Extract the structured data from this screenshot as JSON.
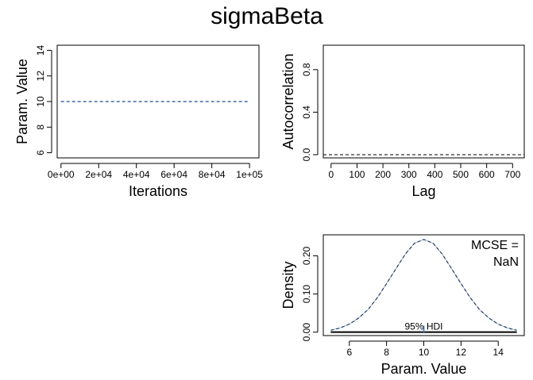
{
  "title": "sigmaBeta",
  "chart_data": [
    {
      "type": "line",
      "panel": "trace",
      "xlabel": "Iterations",
      "ylabel": "Param. Value",
      "xlim": [
        -2000,
        105000
      ],
      "ylim": [
        5.6,
        14.4
      ],
      "xticks": [
        0,
        20000,
        40000,
        60000,
        80000,
        100000
      ],
      "xtick_labels": [
        "0e+00",
        "2e+04",
        "4e+04",
        "6e+04",
        "8e+04",
        "1e+05"
      ],
      "yticks": [
        6,
        8,
        10,
        12,
        14
      ],
      "ytick_labels": [
        "6",
        "8",
        "10",
        "12",
        "14"
      ],
      "series": [
        {
          "x": [
            0,
            100000
          ],
          "y": [
            10,
            10
          ],
          "color": "#1f4e99",
          "style": "dashed"
        }
      ]
    },
    {
      "type": "line",
      "panel": "autocorrelation",
      "xlabel": "Lag",
      "ylabel": "Autocorrelation",
      "xlim": [
        -30,
        745
      ],
      "ylim": [
        -0.03,
        1.03
      ],
      "xticks": [
        0,
        100,
        200,
        300,
        400,
        500,
        600,
        700
      ],
      "xtick_labels": [
        "0",
        "100",
        "200",
        "300",
        "400",
        "500",
        "600",
        "700"
      ],
      "yticks": [
        0.0,
        0.4,
        0.8
      ],
      "ytick_labels": [
        "0.0",
        "0.4",
        "0.8"
      ],
      "reference_line": {
        "y": 0,
        "color": "#000000",
        "style": "dashed"
      },
      "series": []
    },
    {
      "type": "area",
      "panel": "density",
      "xlabel": "Param. Value",
      "ylabel": "Density",
      "xlim": [
        4.6,
        15.4
      ],
      "ylim": [
        -0.009,
        0.255
      ],
      "xticks": [
        6,
        8,
        10,
        12,
        14
      ],
      "xtick_labels": [
        "6",
        "8",
        "10",
        "12",
        "14"
      ],
      "yticks": [
        0.0,
        0.1,
        0.2
      ],
      "ytick_labels": [
        "0.00",
        "0.10",
        "0.20"
      ],
      "series": [
        {
          "x": [
            5,
            5.5,
            6,
            6.5,
            7,
            7.5,
            8,
            8.5,
            9,
            9.5,
            10,
            10.5,
            11,
            11.5,
            12,
            12.5,
            13,
            13.5,
            14,
            14.5,
            15
          ],
          "y": [
            0.005,
            0.011,
            0.021,
            0.037,
            0.059,
            0.09,
            0.127,
            0.166,
            0.204,
            0.233,
            0.243,
            0.233,
            0.204,
            0.166,
            0.127,
            0.09,
            0.059,
            0.037,
            0.021,
            0.011,
            0.005
          ],
          "color": "#1f4e99",
          "style": "dashed"
        }
      ],
      "hdi": {
        "label": "95% HDI",
        "low": 5,
        "high": 15,
        "point": 10
      },
      "annotation": [
        "MCSE =",
        "NaN"
      ]
    }
  ]
}
